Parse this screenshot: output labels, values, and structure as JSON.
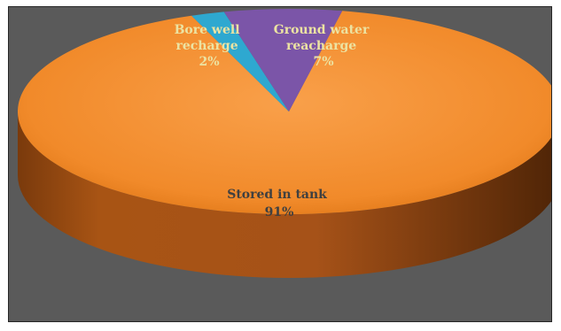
{
  "chart_data": {
    "type": "pie",
    "style": "3d",
    "slices": [
      {
        "label_lines": [
          "Stored in tank"
        ],
        "percent_label": "91%",
        "value": 91,
        "color": "#F79232"
      },
      {
        "label_lines": [
          "Bore well",
          "recharge"
        ],
        "percent_label": "2%",
        "value": 2,
        "color": "#2EA8D0"
      },
      {
        "label_lines": [
          "Ground water",
          "reacharge"
        ],
        "percent_label": "7%",
        "value": 7,
        "color": "#7B55A8"
      }
    ],
    "background_color": "#5A5A5A",
    "label_colors": {
      "on_orange": "#404040",
      "on_dark": "#ECE3A2"
    }
  }
}
